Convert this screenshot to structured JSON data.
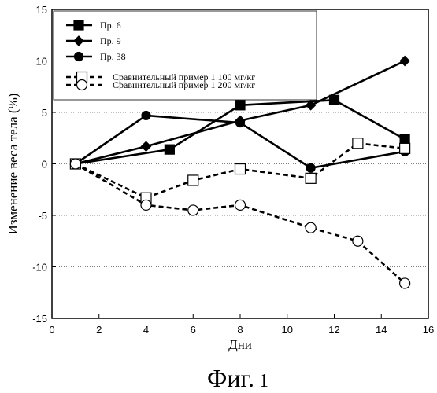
{
  "figure_caption": "Фиг.",
  "figure_number": "1",
  "chart_data": {
    "type": "line",
    "xlabel": "Дни",
    "ylabel": "Изменение веса тела (%)",
    "xlim": [
      0,
      16
    ],
    "ylim": [
      -15,
      15
    ],
    "xticks": [
      "0",
      "2",
      "4",
      "6",
      "8",
      "10",
      "12",
      "14",
      "16"
    ],
    "yticks": [
      "15",
      "10",
      "5",
      "0",
      "-5",
      "-10",
      "-15"
    ],
    "grid": "horizontal dotted",
    "legend_position": "top-left",
    "series": [
      {
        "name": "Пр. 6",
        "marker": "filled-square",
        "line": "solid",
        "color": "#000000",
        "x": [
          1,
          5,
          8,
          12,
          15
        ],
        "y": [
          0,
          1.4,
          5.7,
          6.2,
          2.4
        ]
      },
      {
        "name": "Пр. 9",
        "marker": "filled-diamond",
        "line": "solid",
        "color": "#000000",
        "x": [
          1,
          4,
          8,
          11,
          15
        ],
        "y": [
          0,
          1.7,
          4.2,
          5.7,
          10.0
        ]
      },
      {
        "name": "Пр. 38",
        "marker": "filled-circle",
        "line": "solid",
        "color": "#000000",
        "x": [
          1,
          4,
          8,
          11,
          15
        ],
        "y": [
          0,
          4.7,
          4.0,
          -0.4,
          1.2
        ]
      },
      {
        "name": "Сравнительный пример  1 100 мг/кг",
        "marker": "open-square",
        "line": "dashed",
        "color": "#000000",
        "x": [
          1,
          4,
          6,
          8,
          11,
          13,
          15
        ],
        "y": [
          0,
          -3.3,
          -1.6,
          -0.5,
          -1.4,
          2.0,
          1.5
        ]
      },
      {
        "name": "Сравнительный пример   1 200 мг/кг",
        "marker": "open-circle",
        "line": "dashed",
        "color": "#000000",
        "x": [
          1,
          4,
          6,
          8,
          11,
          13,
          15
        ],
        "y": [
          0,
          -4.0,
          -4.5,
          -4.0,
          -6.2,
          -7.5,
          -11.6
        ]
      }
    ]
  }
}
